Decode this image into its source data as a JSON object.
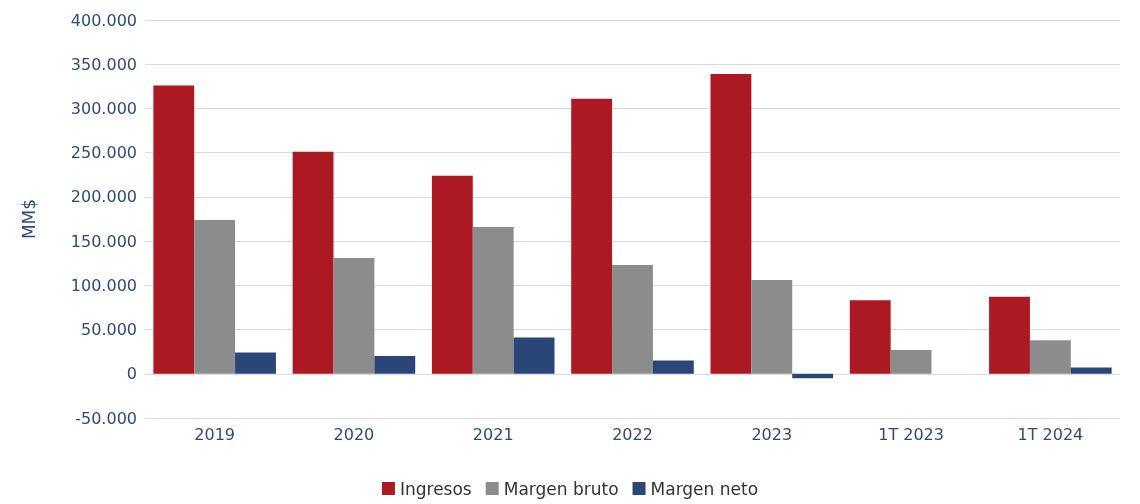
{
  "chart_data": {
    "type": "bar",
    "ylabel": "MM$",
    "categories": [
      "2019",
      "2020",
      "2021",
      "2022",
      "2023",
      "1T 2023",
      "1T 2024"
    ],
    "series": [
      {
        "name": "Ingresos",
        "color": "#ad1923",
        "values": [
          326000,
          251000,
          224000,
          311000,
          339000,
          83000,
          87000
        ]
      },
      {
        "name": "Margen bruto",
        "color": "#8c8c8c",
        "values": [
          174000,
          131000,
          166000,
          123000,
          106000,
          27000,
          38000
        ]
      },
      {
        "name": "Margen neto",
        "color": "#2a4677",
        "values": [
          24000,
          20000,
          41000,
          15000,
          -5000,
          0,
          7000
        ]
      }
    ],
    "ylim": [
      -50000,
      400000
    ],
    "yticks": [
      {
        "value": -50000,
        "label": "-50.000"
      },
      {
        "value": 0,
        "label": "0"
      },
      {
        "value": 50000,
        "label": "50.000"
      },
      {
        "value": 100000,
        "label": "100.000"
      },
      {
        "value": 150000,
        "label": "150.000"
      },
      {
        "value": 200000,
        "label": "200.000"
      },
      {
        "value": 250000,
        "label": "250.000"
      },
      {
        "value": 300000,
        "label": "300.000"
      },
      {
        "value": 350000,
        "label": "350.000"
      },
      {
        "value": 400000,
        "label": "400.000"
      }
    ],
    "grid": "y",
    "legend": "bottom"
  }
}
